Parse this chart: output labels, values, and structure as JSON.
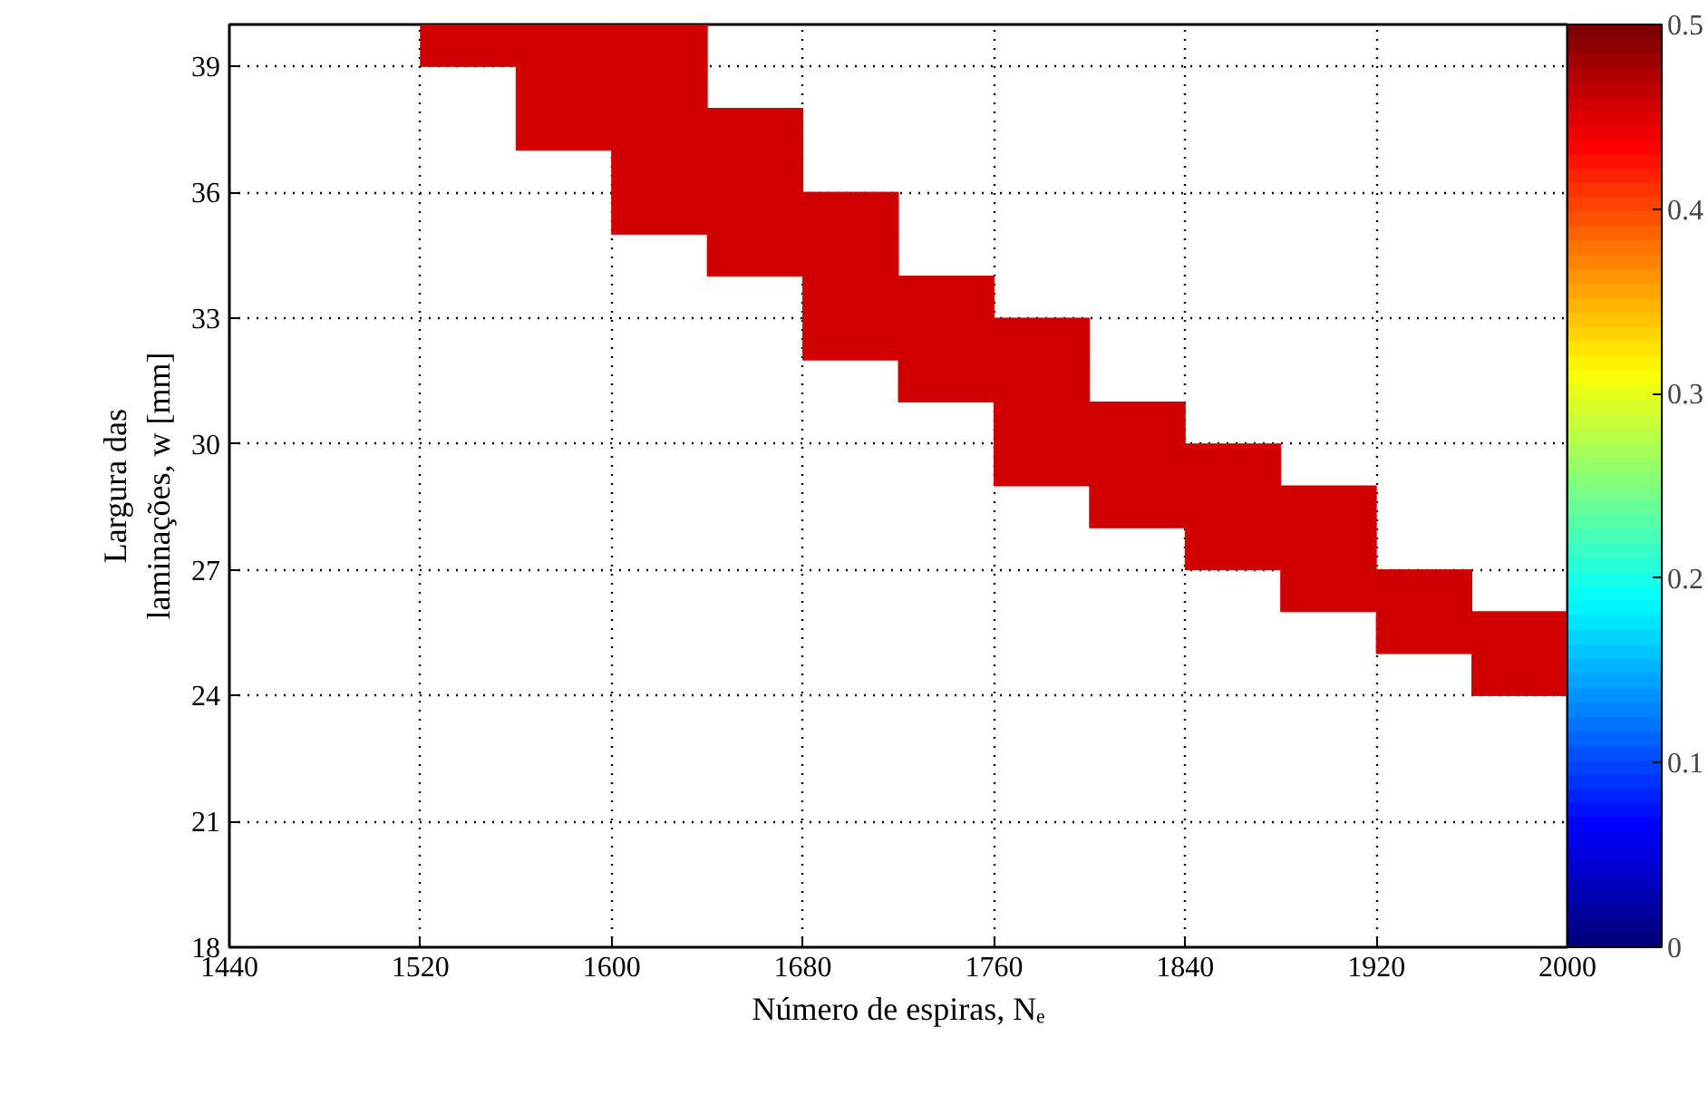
{
  "chart_data": {
    "type": "heatmap",
    "xlabel": "Número de espiras, Nₑ",
    "ylabel": "Largura das\nlaminações, w [mm]",
    "x": [
      1460,
      1500,
      1540,
      1580,
      1620,
      1660,
      1700,
      1740,
      1780,
      1820,
      1860,
      1900,
      1940,
      1980
    ],
    "y": [
      39.5,
      38.5,
      37.5,
      36.5,
      35.5,
      34.5,
      33.5,
      32.5,
      31.5,
      30.5,
      29.5,
      28.5,
      27.5,
      26.5,
      25.5,
      24.5
    ],
    "cells": [
      [
        null,
        null,
        0.46,
        0.46,
        0.46,
        null,
        null,
        null,
        null,
        null,
        null,
        null,
        null,
        null
      ],
      [
        null,
        null,
        null,
        0.46,
        0.46,
        null,
        null,
        null,
        null,
        null,
        null,
        null,
        null,
        null
      ],
      [
        null,
        null,
        null,
        0.46,
        0.46,
        0.46,
        null,
        null,
        null,
        null,
        null,
        null,
        null,
        null
      ],
      [
        null,
        null,
        null,
        null,
        0.46,
        0.46,
        null,
        null,
        null,
        null,
        null,
        null,
        null,
        null
      ],
      [
        null,
        null,
        null,
        null,
        0.46,
        0.46,
        0.46,
        null,
        null,
        null,
        null,
        null,
        null,
        null
      ],
      [
        null,
        null,
        null,
        null,
        null,
        0.46,
        0.46,
        null,
        null,
        null,
        null,
        null,
        null,
        null
      ],
      [
        null,
        null,
        null,
        null,
        null,
        null,
        0.46,
        0.46,
        null,
        null,
        null,
        null,
        null,
        null
      ],
      [
        null,
        null,
        null,
        null,
        null,
        null,
        0.46,
        0.46,
        0.46,
        null,
        null,
        null,
        null,
        null
      ],
      [
        null,
        null,
        null,
        null,
        null,
        null,
        null,
        0.46,
        0.46,
        null,
        null,
        null,
        null,
        null
      ],
      [
        null,
        null,
        null,
        null,
        null,
        null,
        null,
        null,
        0.46,
        0.46,
        null,
        null,
        null,
        null
      ],
      [
        null,
        null,
        null,
        null,
        null,
        null,
        null,
        null,
        0.46,
        0.46,
        0.46,
        null,
        null,
        null
      ],
      [
        null,
        null,
        null,
        null,
        null,
        null,
        null,
        null,
        null,
        0.46,
        0.46,
        0.46,
        null,
        null
      ],
      [
        null,
        null,
        null,
        null,
        null,
        null,
        null,
        null,
        null,
        null,
        0.46,
        0.46,
        null,
        null
      ],
      [
        null,
        null,
        null,
        null,
        null,
        null,
        null,
        null,
        null,
        null,
        null,
        0.46,
        0.46,
        null
      ],
      [
        null,
        null,
        null,
        null,
        null,
        null,
        null,
        null,
        null,
        null,
        null,
        null,
        0.46,
        0.46
      ],
      [
        null,
        null,
        null,
        null,
        null,
        null,
        null,
        null,
        null,
        null,
        null,
        null,
        null,
        0.46
      ]
    ],
    "xlim": [
      1440,
      2000
    ],
    "xticks": [
      1440,
      1520,
      1600,
      1680,
      1760,
      1840,
      1920,
      2000
    ],
    "ylim": [
      18,
      40
    ],
    "yticks": [
      18,
      21,
      24,
      27,
      30,
      33,
      36,
      39
    ],
    "clim": [
      0,
      0.5
    ],
    "cticks": [
      0,
      0.1,
      0.2,
      0.3,
      0.4,
      0.5
    ],
    "grid": true
  }
}
